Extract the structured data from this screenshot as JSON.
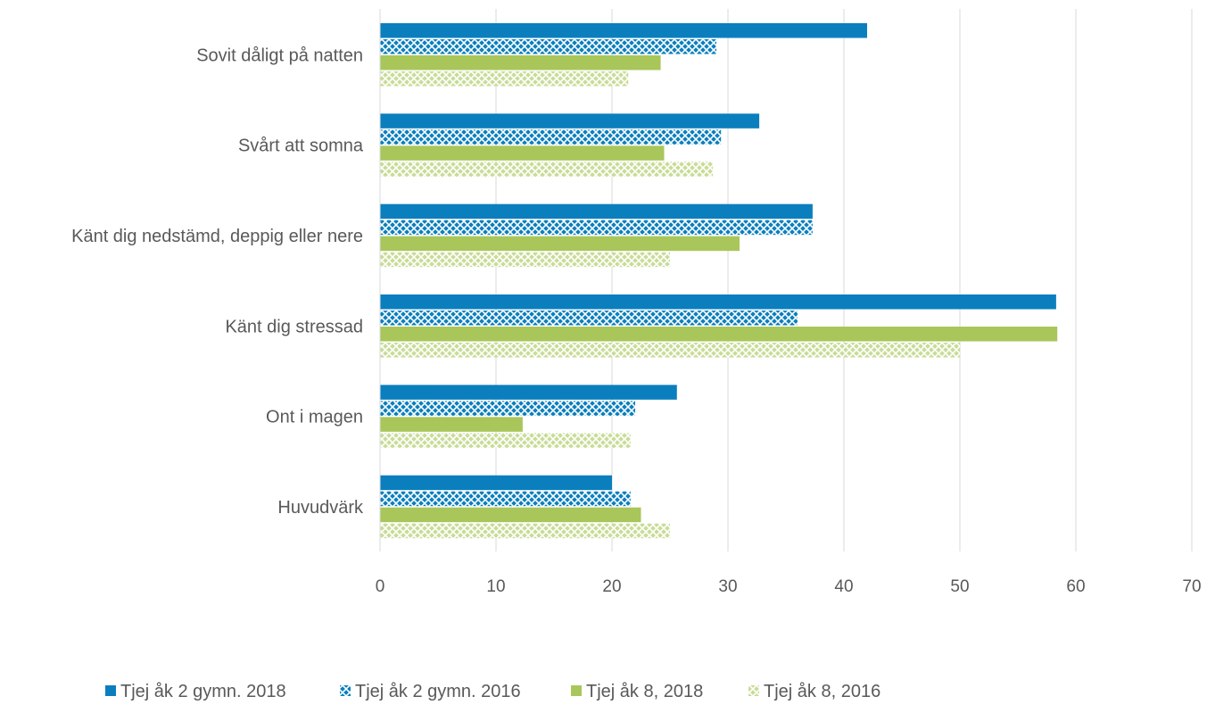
{
  "chart_data": {
    "type": "bar",
    "orientation": "horizontal",
    "categories": [
      "Sovit dåligt på natten",
      "Svårt att somna",
      "Känt dig nedstämd, deppig eller nere",
      "Känt dig stressad",
      "Ont i magen",
      "Huvudvärk"
    ],
    "series": [
      {
        "name": "Tjej åk 2 gymn. 2018",
        "values": [
          42,
          32.7,
          37.3,
          58.3,
          25.6,
          20
        ],
        "color": "#0b7fbe",
        "pattern": "solid"
      },
      {
        "name": "Tjej åk 2 gymn. 2016",
        "values": [
          29,
          29.4,
          37.3,
          36,
          22,
          21.6
        ],
        "color": "#0b7fbe",
        "pattern": "hatched"
      },
      {
        "name": "Tjej åk 8, 2018",
        "values": [
          24.2,
          24.5,
          31,
          58.4,
          12.3,
          22.5
        ],
        "color": "#a9c65b",
        "pattern": "solid"
      },
      {
        "name": "Tjej åk 8, 2016",
        "values": [
          21.4,
          28.7,
          25,
          50,
          21.6,
          25
        ],
        "color": "#a9c65b",
        "pattern": "hatched"
      }
    ],
    "xticks": [
      "0",
      "10",
      "20",
      "30",
      "40",
      "50",
      "60",
      "70"
    ],
    "xlim": [
      0,
      70
    ],
    "grid": true,
    "legend_position": "bottom",
    "title": "",
    "xlabel": "",
    "ylabel": ""
  }
}
